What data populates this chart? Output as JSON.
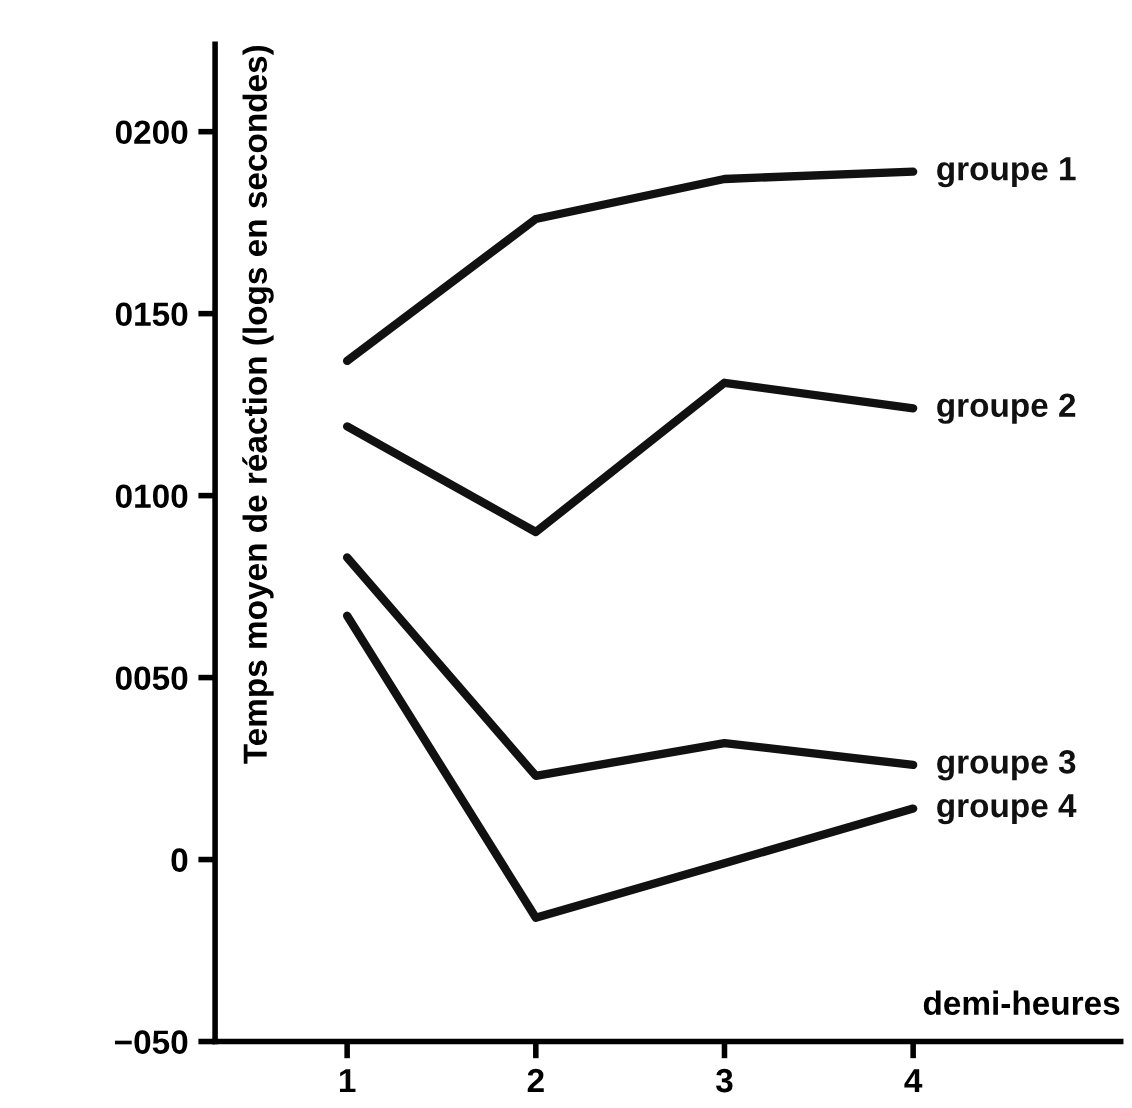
{
  "chart_data": {
    "type": "line",
    "xlabel": "demi-heures",
    "ylabel": "Temps moyen de réaction (logs en secondes)",
    "x": [
      1,
      2,
      3,
      4
    ],
    "series": [
      {
        "name": "groupe 1",
        "color": "#111111",
        "values": [
          137,
          176,
          187,
          189
        ]
      },
      {
        "name": "groupe 2",
        "color": "#111111",
        "values": [
          119,
          90,
          131,
          124
        ]
      },
      {
        "name": "groupe 3",
        "color": "#111111",
        "values": [
          83,
          23,
          32,
          26
        ]
      },
      {
        "name": "groupe 4",
        "color": "#111111",
        "values": [
          67,
          -16,
          -1,
          14
        ]
      }
    ],
    "xlim": [
      0.3,
      5.1
    ],
    "xticks": [
      1,
      2,
      3,
      4
    ],
    "ylim": [
      -50,
      224
    ],
    "yticks": [
      {
        "value": -50,
        "label": "−050"
      },
      0,
      {
        "value": 50,
        "label": "0050"
      },
      {
        "value": 100,
        "label": "0100"
      },
      {
        "value": 150,
        "label": "0150"
      },
      {
        "value": 200,
        "label": "0200"
      }
    ],
    "grid": false,
    "legend": false,
    "marker": "none",
    "line_style": "solid"
  }
}
